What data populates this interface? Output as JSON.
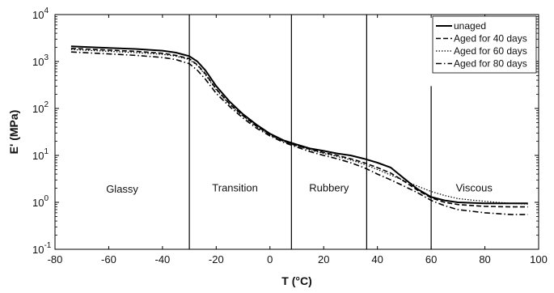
{
  "chart_data": {
    "type": "line",
    "title": "",
    "xlabel": "T (°C)",
    "ylabel": "E' (MPa)",
    "xlim": [
      -80,
      100
    ],
    "ylim": [
      0.1,
      10000
    ],
    "y_scale": "log",
    "grid": false,
    "legend_position": "top-right",
    "x_ticks": [
      "-80",
      "-60",
      "-40",
      "-20",
      "0",
      "20",
      "40",
      "60",
      "80",
      "100"
    ],
    "y_ticks": [
      {
        "base": "10",
        "exp": "-1"
      },
      {
        "base": "10",
        "exp": "0"
      },
      {
        "base": "10",
        "exp": "1"
      },
      {
        "base": "10",
        "exp": "2"
      },
      {
        "base": "10",
        "exp": "3"
      },
      {
        "base": "10",
        "exp": "4"
      }
    ],
    "vertical_lines": [
      -30,
      8,
      36,
      60
    ],
    "regions": [
      {
        "label": "Glassy",
        "x": -55,
        "y": 1.6
      },
      {
        "label": "Transition",
        "x": -13,
        "y": 1.7
      },
      {
        "label": "Rubbery",
        "x": 22,
        "y": 1.7
      },
      {
        "label": "Viscous",
        "x": 76,
        "y": 1.7
      }
    ],
    "series": [
      {
        "name": "unaged",
        "style": "solid",
        "x": [
          -74,
          -60,
          -50,
          -40,
          -35,
          -30,
          -27,
          -24,
          -20,
          -15,
          -10,
          -5,
          0,
          5,
          10,
          15,
          20,
          25,
          30,
          35,
          40,
          45,
          50,
          55,
          60,
          65,
          70,
          80,
          90,
          96
        ],
        "y": [
          2100,
          1950,
          1850,
          1700,
          1550,
          1300,
          1000,
          650,
          300,
          140,
          75,
          45,
          29,
          21,
          17,
          14,
          12.5,
          11,
          10,
          8.5,
          7,
          5.5,
          3.2,
          1.9,
          1.3,
          1.1,
          1.0,
          0.95,
          0.95,
          0.95
        ]
      },
      {
        "name": "Aged for 40 days",
        "style": "dashed",
        "x": [
          -74,
          -60,
          -50,
          -40,
          -35,
          -30,
          -27,
          -24,
          -20,
          -15,
          -10,
          -5,
          0,
          5,
          10,
          15,
          20,
          25,
          30,
          35,
          40,
          45,
          50,
          55,
          60,
          65,
          70,
          80,
          90,
          96
        ],
        "y": [
          1900,
          1750,
          1650,
          1500,
          1350,
          1150,
          850,
          550,
          260,
          125,
          70,
          42,
          28,
          20,
          16,
          13.5,
          11.5,
          10,
          8.5,
          7,
          5.5,
          4.2,
          2.8,
          1.8,
          1.25,
          1.0,
          0.9,
          0.82,
          0.8,
          0.8
        ]
      },
      {
        "name": "Aged for 60 days",
        "style": "dotted",
        "x": [
          -74,
          -60,
          -50,
          -40,
          -35,
          -30,
          -27,
          -24,
          -20,
          -15,
          -10,
          -5,
          0,
          5,
          10,
          15,
          20,
          25,
          30,
          35,
          40,
          45,
          50,
          55,
          60,
          65,
          70,
          80,
          90,
          96
        ],
        "y": [
          1800,
          1650,
          1550,
          1420,
          1300,
          1100,
          820,
          520,
          250,
          120,
          68,
          41,
          27,
          20,
          16,
          13,
          11,
          9.5,
          8,
          6.5,
          5,
          3.8,
          2.9,
          2.2,
          1.7,
          1.4,
          1.2,
          1.05,
          0.95,
          0.92
        ]
      },
      {
        "name": "Aged for 80 days",
        "style": "dashdot",
        "x": [
          -74,
          -60,
          -50,
          -40,
          -35,
          -30,
          -27,
          -24,
          -20,
          -15,
          -10,
          -5,
          0,
          5,
          10,
          15,
          20,
          25,
          30,
          35,
          40,
          45,
          50,
          55,
          60,
          65,
          70,
          80,
          90,
          96
        ],
        "y": [
          1600,
          1450,
          1350,
          1220,
          1100,
          900,
          650,
          420,
          210,
          110,
          62,
          38,
          26,
          19,
          15,
          12,
          10,
          8.5,
          7,
          5.5,
          4,
          3,
          2.2,
          1.6,
          1.1,
          0.85,
          0.7,
          0.6,
          0.55,
          0.55
        ]
      }
    ]
  }
}
